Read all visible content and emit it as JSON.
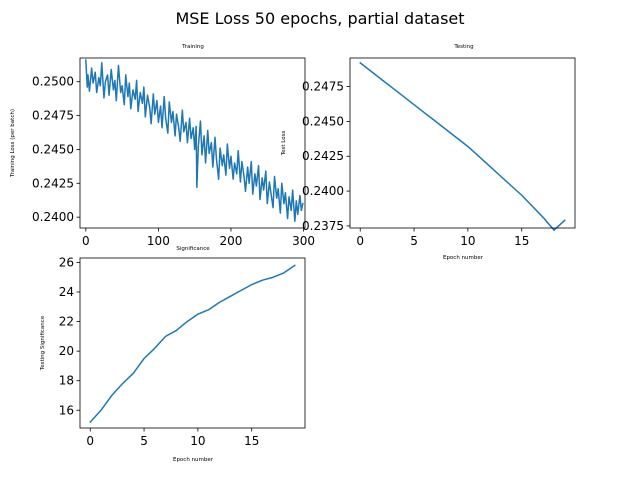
{
  "figure": {
    "suptitle": "MSE Loss 50 epochs, partial dataset"
  },
  "chart_data": [
    {
      "type": "line",
      "title": "Training",
      "xlabel": "Significance",
      "ylabel": "Training Loss (per batch)",
      "xlim": [
        -8,
        302
      ],
      "ylim": [
        0.2392,
        0.25175
      ],
      "xticks": [
        0,
        100,
        200,
        300
      ],
      "yticks": [
        0.24,
        0.2425,
        0.245,
        0.2475,
        0.25
      ],
      "ytick_labels": [
        "0.2400",
        "0.2425",
        "0.2450",
        "0.2475",
        "0.2500"
      ],
      "color": "#1f77b4",
      "trend": {
        "x": [
          0,
          50,
          100,
          150,
          200,
          250,
          300
        ],
        "y": [
          0.25,
          0.249,
          0.2476,
          0.246,
          0.2445,
          0.2425,
          0.2408
        ]
      },
      "noise_amplitude": 0.0008,
      "n_points": 300,
      "x": [
        0,
        2,
        3,
        5,
        8,
        10,
        13,
        15,
        18,
        20,
        22,
        25,
        27,
        30,
        32,
        35,
        38,
        40,
        42,
        45,
        48,
        50,
        53,
        55,
        58,
        60,
        62,
        65,
        68,
        70,
        72,
        75,
        78,
        80,
        82,
        85,
        88,
        90,
        93,
        95,
        98,
        100,
        103,
        105,
        108,
        110,
        113,
        115,
        118,
        120,
        123,
        125,
        128,
        130,
        133,
        135,
        138,
        140,
        143,
        145,
        148,
        150,
        152,
        153,
        155,
        158,
        160,
        163,
        165,
        168,
        170,
        173,
        175,
        178,
        180,
        183,
        185,
        188,
        190,
        193,
        195,
        198,
        200,
        203,
        205,
        208,
        210,
        213,
        215,
        218,
        220,
        223,
        225,
        228,
        230,
        233,
        235,
        238,
        240,
        243,
        245,
        248,
        250,
        253,
        255,
        258,
        260,
        263,
        265,
        268,
        270,
        273,
        275,
        278,
        280,
        283,
        285,
        288,
        290,
        292,
        295,
        297,
        299
      ],
      "y": [
        0.2516,
        0.2496,
        0.2505,
        0.2493,
        0.251,
        0.2499,
        0.2507,
        0.2492,
        0.2503,
        0.2497,
        0.2514,
        0.2488,
        0.25,
        0.2505,
        0.249,
        0.2509,
        0.2494,
        0.2501,
        0.2486,
        0.2512,
        0.2492,
        0.2497,
        0.2483,
        0.2505,
        0.2489,
        0.2499,
        0.248,
        0.2494,
        0.2487,
        0.2501,
        0.2478,
        0.2492,
        0.2484,
        0.2496,
        0.2474,
        0.249,
        0.2481,
        0.2469,
        0.2491,
        0.2476,
        0.2486,
        0.247,
        0.2482,
        0.2466,
        0.2489,
        0.2473,
        0.2462,
        0.2485,
        0.247,
        0.2478,
        0.246,
        0.2476,
        0.2466,
        0.2456,
        0.2479,
        0.2463,
        0.247,
        0.2455,
        0.2473,
        0.2458,
        0.2466,
        0.245,
        0.2467,
        0.2422,
        0.2452,
        0.2471,
        0.2446,
        0.246,
        0.244,
        0.2464,
        0.2447,
        0.2455,
        0.2437,
        0.2459,
        0.2443,
        0.2428,
        0.2451,
        0.2438,
        0.2446,
        0.2431,
        0.2454,
        0.2436,
        0.2445,
        0.2428,
        0.244,
        0.2432,
        0.2449,
        0.2426,
        0.2441,
        0.243,
        0.2419,
        0.2437,
        0.2425,
        0.2441,
        0.2417,
        0.2432,
        0.2423,
        0.2438,
        0.2413,
        0.2429,
        0.242,
        0.2434,
        0.241,
        0.2426,
        0.2418,
        0.2407,
        0.243,
        0.2414,
        0.2421,
        0.2403,
        0.2425,
        0.241,
        0.2418,
        0.2399,
        0.2415,
        0.2405,
        0.242,
        0.2397,
        0.2412,
        0.2402,
        0.2416,
        0.2405,
        0.241
      ]
    },
    {
      "type": "line",
      "title": "Testing",
      "xlabel": "Epoch number",
      "ylabel": "Test Loss",
      "xlim": [
        -0.95,
        19.95
      ],
      "ylim": [
        0.23735,
        0.24955
      ],
      "xticks": [
        0,
        5,
        10,
        15
      ],
      "yticks": [
        0.2375,
        0.24,
        0.2425,
        0.245,
        0.2475
      ],
      "ytick_labels": [
        "0.2375",
        "0.2400",
        "0.2425",
        "0.2450",
        "0.2475"
      ],
      "color": "#1f77b4",
      "x": [
        0,
        1,
        2,
        3,
        4,
        5,
        6,
        7,
        8,
        9,
        10,
        11,
        12,
        13,
        14,
        15,
        16,
        17,
        18,
        19
      ],
      "y": [
        0.2492,
        0.2486,
        0.248,
        0.2474,
        0.2468,
        0.2462,
        0.2456,
        0.245,
        0.2444,
        0.2438,
        0.2432,
        0.2425,
        0.2418,
        0.2411,
        0.2404,
        0.2397,
        0.2389,
        0.2381,
        0.2372,
        0.2379
      ]
    },
    {
      "type": "line",
      "title": "",
      "xlabel": "Epoch number",
      "ylabel": "Testing Significance",
      "xlim": [
        -0.95,
        19.95
      ],
      "ylim": [
        14.8,
        26.3
      ],
      "xticks": [
        0,
        5,
        10,
        15
      ],
      "yticks": [
        16,
        18,
        20,
        22,
        24,
        26
      ],
      "ytick_labels": [
        "16",
        "18",
        "20",
        "22",
        "24",
        "26"
      ],
      "color": "#1f77b4",
      "x": [
        0,
        1,
        2,
        3,
        4,
        5,
        6,
        7,
        8,
        9,
        10,
        11,
        12,
        13,
        14,
        15,
        16,
        17,
        18,
        19
      ],
      "y": [
        15.2,
        16.0,
        17.0,
        17.8,
        18.5,
        19.5,
        20.2,
        21.0,
        21.4,
        22.0,
        22.5,
        22.8,
        23.3,
        23.7,
        24.1,
        24.5,
        24.8,
        25.0,
        25.3,
        25.8
      ]
    }
  ]
}
